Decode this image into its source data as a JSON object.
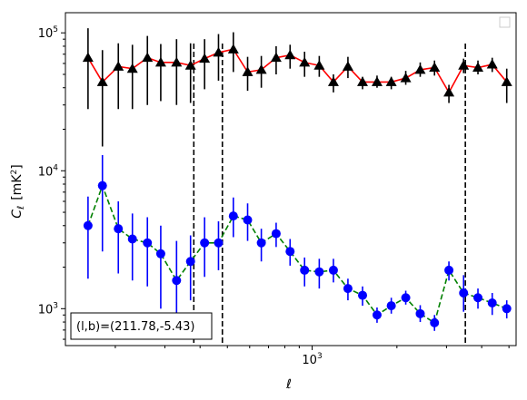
{
  "chart_data": {
    "type": "scatter",
    "xscale": "log",
    "yscale": "log",
    "xlim": [
      133,
      5300
    ],
    "ylim": [
      540,
      140000
    ],
    "xlabel": "ℓ",
    "ylabel_main": "C",
    "ylabel_sub": "ℓ",
    "ylabel_unit": "[mK",
    "ylabel_sup": "2",
    "ylabel_close": "]",
    "xticks": [
      {
        "value": 1000,
        "base": "10",
        "exp": "3"
      }
    ],
    "yticks": [
      {
        "value": 1000,
        "base": "10",
        "exp": "3"
      },
      {
        "value": 10000,
        "base": "10",
        "exp": "4"
      },
      {
        "value": 100000,
        "base": "10",
        "exp": "5"
      }
    ],
    "vlines": [
      380,
      480,
      3500
    ],
    "annotation": "(l,b)=(211.78,-5.43)",
    "legend": "upper right (empty)",
    "grid": false,
    "series": [
      {
        "line_color": "#ff0000",
        "line_style": "solid",
        "marker": "triangle",
        "marker_color": "#000000",
        "error_color": "#000000",
        "x": [
          160,
          180,
          205,
          230,
          260,
          290,
          330,
          370,
          415,
          465,
          525,
          590,
          660,
          745,
          835,
          940,
          1060,
          1190,
          1340,
          1510,
          1700,
          1910,
          2150,
          2420,
          2720,
          3060,
          3450,
          3880,
          4360,
          4910
        ],
        "y": [
          66000,
          44000,
          57000,
          55000,
          66000,
          61000,
          61000,
          58000,
          65000,
          72000,
          76000,
          52000,
          54000,
          66000,
          69000,
          61000,
          58000,
          44000,
          57000,
          44000,
          44000,
          44000,
          47000,
          54000,
          56000,
          37000,
          58000,
          56000,
          59000,
          44000
        ],
        "ylow": [
          28000,
          15000,
          28000,
          28000,
          30000,
          32000,
          30000,
          31000,
          39000,
          45000,
          52000,
          38000,
          40000,
          50000,
          55000,
          48000,
          48000,
          37000,
          47000,
          39000,
          40000,
          39000,
          42000,
          48000,
          49000,
          31000,
          51000,
          50000,
          52000,
          31000
        ],
        "yhigh": [
          108000,
          75000,
          84000,
          82000,
          95000,
          83000,
          90000,
          84000,
          90000,
          98000,
          101000,
          67000,
          68000,
          80000,
          82000,
          73000,
          68000,
          50000,
          67000,
          48000,
          49000,
          48000,
          53000,
          61000,
          63000,
          42000,
          65000,
          63000,
          66000,
          55000
        ]
      },
      {
        "line_color": "#008000",
        "line_style": "dashed",
        "marker": "circle",
        "marker_color": "#0000ff",
        "error_color": "#0000ff",
        "x": [
          160,
          180,
          205,
          230,
          260,
          290,
          330,
          370,
          415,
          465,
          525,
          590,
          660,
          745,
          835,
          940,
          1060,
          1190,
          1340,
          1510,
          1700,
          1910,
          2150,
          2420,
          2720,
          3060,
          3450,
          3880,
          4360,
          4910
        ],
        "y": [
          4000,
          7800,
          3800,
          3200,
          3000,
          2500,
          1600,
          2200,
          3000,
          3000,
          4700,
          4400,
          3000,
          3500,
          2600,
          1900,
          1850,
          1900,
          1400,
          1250,
          900,
          1050,
          1200,
          920,
          790,
          1900,
          1300,
          1200,
          1100,
          1000
        ],
        "ylow": [
          1650,
          2600,
          1800,
          1600,
          1450,
          1000,
          650,
          1150,
          1700,
          1900,
          3300,
          3100,
          2200,
          2800,
          2050,
          1450,
          1400,
          1550,
          1150,
          1050,
          790,
          920,
          1070,
          800,
          690,
          1600,
          950,
          1000,
          900,
          850
        ],
        "yhigh": [
          6500,
          13000,
          6000,
          4900,
          4600,
          4000,
          3100,
          3400,
          4600,
          4300,
          6400,
          5800,
          3800,
          4200,
          3200,
          2350,
          2300,
          2300,
          1650,
          1450,
          1020,
          1200,
          1350,
          1060,
          900,
          2200,
          1750,
          1400,
          1300,
          1150
        ]
      }
    ]
  }
}
